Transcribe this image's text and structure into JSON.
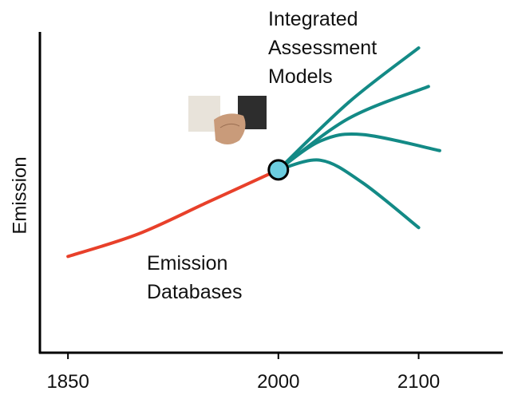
{
  "chart_data": {
    "type": "line",
    "y_label": "Emission",
    "annotations": [
      "Integrated",
      "Assessment",
      "Models",
      "Emission",
      "Databases"
    ],
    "xlim": [
      1830,
      2160
    ],
    "xticks": [
      1850,
      2000,
      2100
    ],
    "ylim": [
      0,
      100
    ],
    "series": [
      {
        "color": "#e8402a",
        "x": [
          1850,
          1900,
          1950,
          2000
        ],
        "values": [
          30,
          37,
          47,
          57
        ]
      },
      {
        "color": "#138a86",
        "x": [
          2000,
          2050,
          2100
        ],
        "values": [
          57,
          78,
          95
        ]
      },
      {
        "color": "#138a86",
        "x": [
          2000,
          2050,
          2107
        ],
        "values": [
          57,
          73,
          83
        ]
      },
      {
        "color": "#138a86",
        "x": [
          2000,
          2030,
          2060,
          2115
        ],
        "values": [
          57,
          66,
          68,
          63
        ]
      },
      {
        "color": "#138a86",
        "x": [
          2000,
          2030,
          2060,
          2100
        ],
        "values": [
          57,
          60,
          53,
          39
        ]
      }
    ]
  }
}
